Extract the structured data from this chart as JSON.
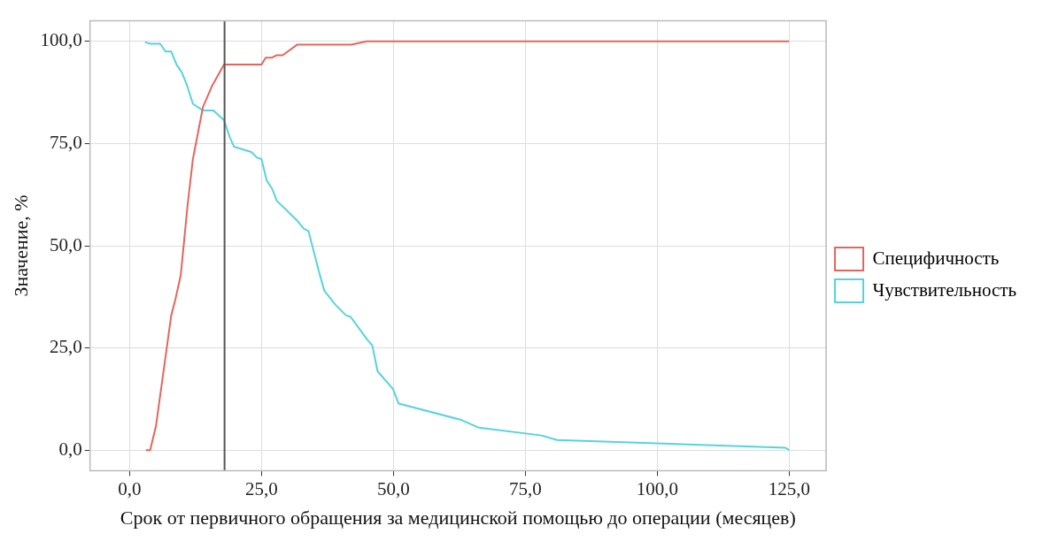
{
  "chart_data": {
    "type": "line",
    "xlabel": "Срок от первичного обращения за медицинской помощью до операции (месяцев)",
    "ylabel": "Значение, %",
    "xlim": [
      -7.5,
      132
    ],
    "ylim": [
      -5,
      105
    ],
    "xticks": [
      {
        "value": 0,
        "label": "0,0"
      },
      {
        "value": 25,
        "label": "25,0"
      },
      {
        "value": 50,
        "label": "50,0"
      },
      {
        "value": 75,
        "label": "75,0"
      },
      {
        "value": 100,
        "label": "100,0"
      },
      {
        "value": 125,
        "label": "125,0"
      }
    ],
    "yticks": [
      {
        "value": 0,
        "label": "0,0"
      },
      {
        "value": 25,
        "label": "25,0"
      },
      {
        "value": 50,
        "label": "50,0"
      },
      {
        "value": 75,
        "label": "75,0"
      },
      {
        "value": 100,
        "label": "100,0"
      }
    ],
    "grid": true,
    "legend": "right",
    "marker": "none",
    "line_style": "solid",
    "ref_lines": [
      {
        "axis": "x",
        "value": 18,
        "color": "#555555"
      }
    ],
    "series": [
      {
        "name": "Специфичность",
        "color": "#e5655e",
        "x": [
          3.1,
          3.9,
          5,
          7.9,
          8.7,
          9.7,
          11,
          12,
          13.9,
          15.6,
          17.9,
          25,
          25.8,
          27,
          27.9,
          29,
          31.8,
          42,
          45,
          125
        ],
        "values": [
          0,
          0,
          5.9,
          33,
          37,
          42.8,
          60,
          71.2,
          83.9,
          89,
          94.3,
          94.3,
          96,
          96,
          96.6,
          96.6,
          99.2,
          99.2,
          100,
          100
        ]
      },
      {
        "name": "Чувствительность",
        "color": "#56d3dd",
        "x": [
          2.9,
          3.9,
          5.8,
          6.8,
          7.9,
          8.9,
          9.9,
          10.9,
          12,
          13.9,
          15.9,
          17.9,
          19,
          19.8,
          23.1,
          24.1,
          25,
          26,
          27,
          27.9,
          31.8,
          33,
          33.9,
          35.9,
          36.9,
          39,
          41,
          41.9,
          45,
          46,
          47,
          49.9,
          51,
          62.9,
          66.2,
          78.1,
          81,
          124.3,
          125
        ],
        "values": [
          99.8,
          99.4,
          99.4,
          97.5,
          97.5,
          94.3,
          92.4,
          89.2,
          84.7,
          83.1,
          83.1,
          80.7,
          76.5,
          74.2,
          72.9,
          71.6,
          71.2,
          65.9,
          64,
          61,
          56.1,
          54.2,
          53.6,
          43.6,
          39,
          35.6,
          33,
          32.6,
          27.1,
          25.6,
          19.3,
          15,
          11.4,
          7.4,
          5.5,
          3.6,
          2.5,
          0.6,
          0
        ]
      }
    ]
  }
}
